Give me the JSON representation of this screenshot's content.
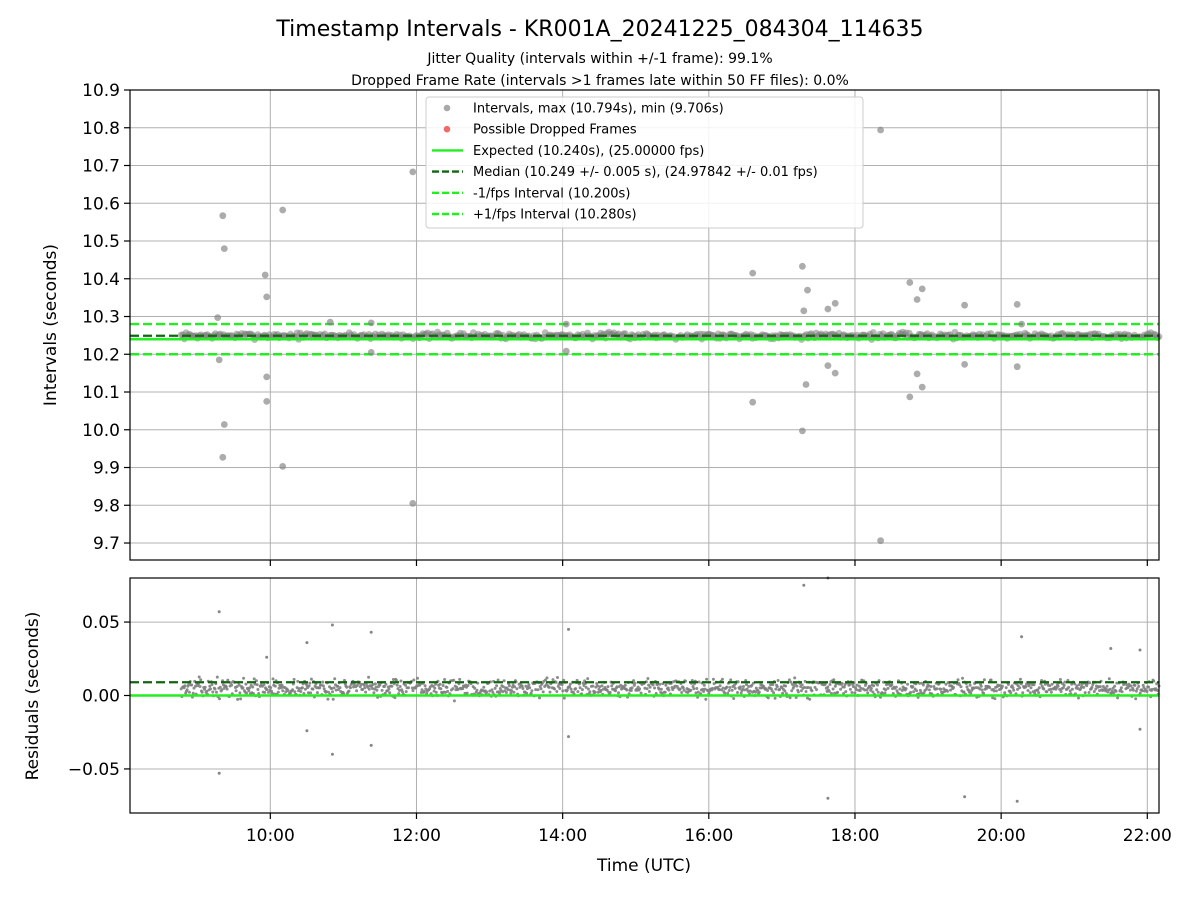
{
  "title": "Timestamp Intervals - KR001A_20241225_084304_114635",
  "subtitle_lines": [
    "Jitter Quality (intervals within +/-1 frame): 99.1%",
    "Dropped Frame Rate (intervals >1 frames late within 50 FF files): 0.0%"
  ],
  "colors": {
    "points": "#808080",
    "points_top": "#a9a9a9",
    "dropped": "#f06a6a",
    "expected": "#22ee22",
    "median": "#116611",
    "fps_bound": "#22ee22",
    "grid": "#b0b0b0"
  },
  "chart_data": [
    {
      "type": "scatter",
      "ylabel": "Intervals (seconds)",
      "xlim_hours": [
        8.08,
        22.16
      ],
      "ylim": [
        9.655,
        10.9
      ],
      "y_ticks": [
        9.7,
        9.8,
        9.9,
        10.0,
        10.1,
        10.2,
        10.3,
        10.4,
        10.5,
        10.6,
        10.7,
        10.8,
        10.9
      ],
      "y_tick_labels": [
        "9.7",
        "9.8",
        "9.9",
        "10.0",
        "10.1",
        "10.2",
        "10.3",
        "10.4",
        "10.5",
        "10.6",
        "10.7",
        "10.8",
        "10.9"
      ],
      "grid": true,
      "legend_position": "top-center",
      "legend": [
        {
          "label": "Intervals, max (10.794s), min (9.706s)",
          "kind": "point",
          "color": "#a9a9a9"
        },
        {
          "label": "Possible Dropped Frames",
          "kind": "point",
          "color": "#f06a6a"
        },
        {
          "label": "Expected (10.240s), (25.00000 fps)",
          "kind": "solid",
          "color": "#22ee22"
        },
        {
          "label": "Median (10.249 +/- 0.005 s), (24.97842 +/- 0.01 fps)",
          "kind": "dashed",
          "color": "#116611"
        },
        {
          "label": "-1/fps Interval (10.200s)",
          "kind": "dashed",
          "color": "#22ee22"
        },
        {
          "label": "+1/fps Interval (10.280s)",
          "kind": "dashed",
          "color": "#22ee22"
        }
      ],
      "hlines": {
        "expected": 10.24,
        "median": 10.249,
        "minus_fps": 10.2,
        "plus_fps": 10.28
      },
      "band": {
        "x_start": 8.78,
        "x_end": 22.16,
        "center": 10.249,
        "spread": 0.012
      },
      "outliers": [
        {
          "x": 9.28,
          "y": 10.297
        },
        {
          "x": 9.3,
          "y": 10.185
        },
        {
          "x": 9.35,
          "y": 10.567
        },
        {
          "x": 9.37,
          "y": 10.48
        },
        {
          "x": 9.37,
          "y": 10.014
        },
        {
          "x": 9.35,
          "y": 9.927
        },
        {
          "x": 9.93,
          "y": 10.41
        },
        {
          "x": 9.95,
          "y": 10.352
        },
        {
          "x": 9.95,
          "y": 10.14
        },
        {
          "x": 9.95,
          "y": 10.075
        },
        {
          "x": 10.17,
          "y": 10.582
        },
        {
          "x": 10.17,
          "y": 9.903
        },
        {
          "x": 10.82,
          "y": 10.285
        },
        {
          "x": 11.38,
          "y": 10.283
        },
        {
          "x": 11.38,
          "y": 10.205
        },
        {
          "x": 11.95,
          "y": 10.683
        },
        {
          "x": 11.95,
          "y": 9.805
        },
        {
          "x": 14.05,
          "y": 10.28
        },
        {
          "x": 14.05,
          "y": 10.208
        },
        {
          "x": 16.6,
          "y": 10.415
        },
        {
          "x": 16.6,
          "y": 10.073
        },
        {
          "x": 17.28,
          "y": 10.433
        },
        {
          "x": 17.3,
          "y": 10.315
        },
        {
          "x": 17.35,
          "y": 10.37
        },
        {
          "x": 17.33,
          "y": 10.12
        },
        {
          "x": 17.28,
          "y": 9.997
        },
        {
          "x": 17.63,
          "y": 10.32
        },
        {
          "x": 17.63,
          "y": 10.17
        },
        {
          "x": 17.73,
          "y": 10.335
        },
        {
          "x": 17.73,
          "y": 10.15
        },
        {
          "x": 18.35,
          "y": 10.794
        },
        {
          "x": 18.35,
          "y": 9.706
        },
        {
          "x": 18.75,
          "y": 10.39
        },
        {
          "x": 18.85,
          "y": 10.345
        },
        {
          "x": 18.92,
          "y": 10.373
        },
        {
          "x": 18.85,
          "y": 10.148
        },
        {
          "x": 18.92,
          "y": 10.113
        },
        {
          "x": 18.75,
          "y": 10.087
        },
        {
          "x": 19.5,
          "y": 10.33
        },
        {
          "x": 19.5,
          "y": 10.173
        },
        {
          "x": 20.22,
          "y": 10.332
        },
        {
          "x": 20.28,
          "y": 10.28
        },
        {
          "x": 20.22,
          "y": 10.167
        }
      ]
    },
    {
      "type": "scatter",
      "ylabel": "Residuals (seconds)",
      "xlabel": "Time (UTC)",
      "xlim_hours": [
        8.08,
        22.16
      ],
      "ylim": [
        -0.08,
        0.08
      ],
      "y_ticks": [
        -0.05,
        0.0,
        0.05
      ],
      "y_tick_labels": [
        "−0.05",
        "0.00",
        "0.05"
      ],
      "x_ticks_hours": [
        10,
        12,
        14,
        16,
        18,
        20,
        22
      ],
      "x_tick_labels": [
        "10:00",
        "12:00",
        "14:00",
        "16:00",
        "18:00",
        "20:00",
        "22:00"
      ],
      "grid": true,
      "hlines": {
        "expected": 0.0,
        "median": 0.009
      },
      "band": {
        "x_start": 8.78,
        "x_end": 22.16,
        "center": 0.005,
        "spread": 0.009
      },
      "outliers": [
        {
          "x": 9.3,
          "y": 0.057
        },
        {
          "x": 9.3,
          "y": -0.053
        },
        {
          "x": 9.95,
          "y": 0.026
        },
        {
          "x": 10.5,
          "y": 0.036
        },
        {
          "x": 10.5,
          "y": -0.024
        },
        {
          "x": 10.85,
          "y": 0.048
        },
        {
          "x": 10.85,
          "y": -0.04
        },
        {
          "x": 11.38,
          "y": 0.043
        },
        {
          "x": 11.38,
          "y": -0.034
        },
        {
          "x": 14.08,
          "y": 0.045
        },
        {
          "x": 14.08,
          "y": -0.028
        },
        {
          "x": 17.3,
          "y": 0.075
        },
        {
          "x": 17.63,
          "y": 0.08
        },
        {
          "x": 17.63,
          "y": -0.07
        },
        {
          "x": 19.5,
          "y": -0.069
        },
        {
          "x": 20.22,
          "y": -0.072
        },
        {
          "x": 20.28,
          "y": 0.04
        },
        {
          "x": 21.5,
          "y": 0.032
        },
        {
          "x": 21.9,
          "y": -0.023
        },
        {
          "x": 21.9,
          "y": 0.031
        }
      ]
    }
  ]
}
